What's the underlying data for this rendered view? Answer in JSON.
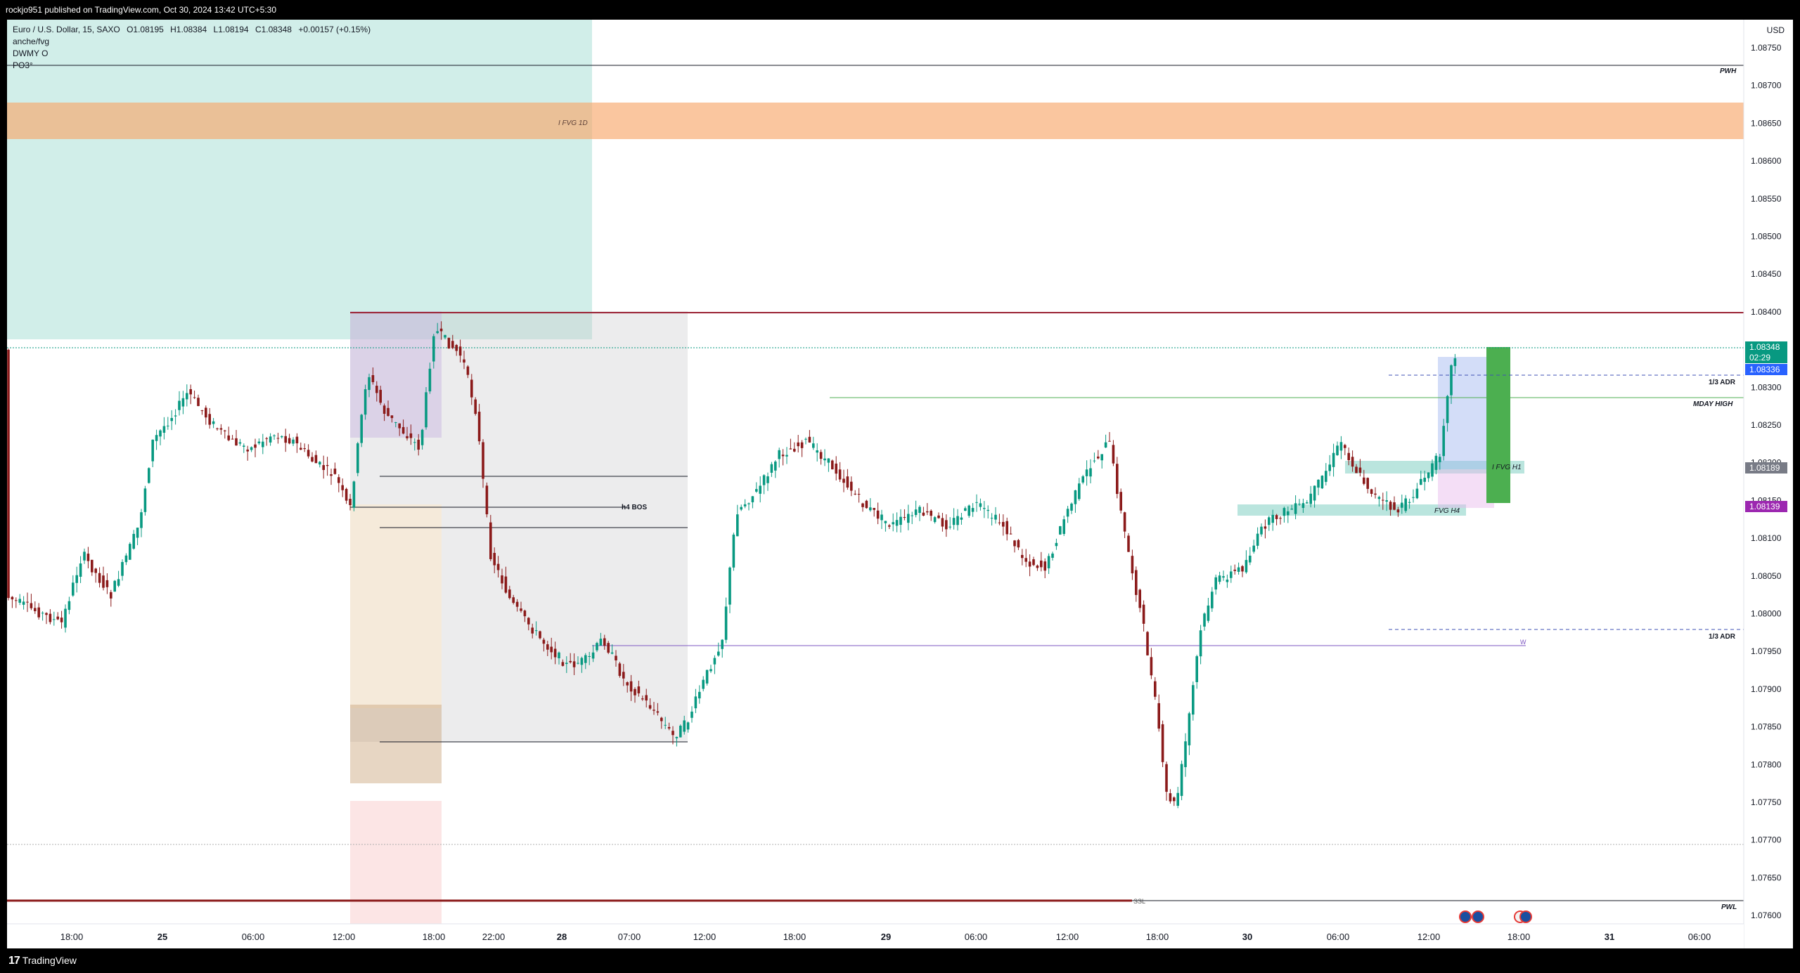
{
  "header": {
    "publisher_line": "rockjo951 published on TradingView.com, Oct 30, 2024 13:42 UTC+5:30"
  },
  "legend": {
    "symbol": "Euro / U.S. Dollar, 15, SAXO",
    "open": "O1.08195",
    "high": "H1.08384",
    "low": "L1.08194",
    "close": "C1.08348",
    "change": "+0.00157 (+0.15%)",
    "indicators": [
      "anche/fvg",
      "DWMY O",
      "PO3°"
    ]
  },
  "price_axis": {
    "currency": "USD",
    "ticks": [
      "1.08750",
      "1.08700",
      "1.08650",
      "1.08600",
      "1.08550",
      "1.08500",
      "1.08450",
      "1.08400",
      "1.08350",
      "1.08300",
      "1.08250",
      "1.08200",
      "1.08150",
      "1.08100",
      "1.08050",
      "1.08000",
      "1.07950",
      "1.07900",
      "1.07850",
      "1.07800",
      "1.07750",
      "1.07700",
      "1.07650",
      "1.07600"
    ],
    "badges": [
      {
        "text": "1.08348",
        "color": "#089981"
      },
      {
        "text": "02:29",
        "color": "#089981"
      },
      {
        "text": "1.08336",
        "color": "#2962ff"
      },
      {
        "text": "1.08189",
        "color": "#787b86"
      },
      {
        "text": "1.08139",
        "color": "#9c27b0"
      }
    ]
  },
  "time_axis": {
    "ticks": [
      "18:00",
      "25",
      "06:00",
      "12:00",
      "18:00",
      "22:00",
      "28",
      "07:00",
      "12:00",
      "18:00",
      "29",
      "06:00",
      "12:00",
      "18:00",
      "30",
      "06:00",
      "12:00",
      "18:00",
      "31",
      "06:00"
    ]
  },
  "labels": {
    "pwh": "PWH",
    "pwl": "PWL",
    "ifvg_1d": "I FVG 1D",
    "h4_bos": "h4 BOS",
    "adr_top": "1/3 ADR",
    "adr_bottom": "1/3 ADR",
    "mday_high": "MDAY HIGH",
    "ifvg_h1": "I FVG H1",
    "fvg_h4": "FVG  H4",
    "ssl": "SSL",
    "w": "W"
  },
  "footer": {
    "brand": "TradingView"
  },
  "colors": {
    "bull": "#089981",
    "bear": "#8b1a1a",
    "orange_zone": "#f7a86b",
    "teal_zone": "#b2e2da"
  },
  "chart_data": {
    "type": "candlestick",
    "symbol": "EURUSD",
    "interval": "15",
    "ylim": [
      1.0759,
      1.0878
    ],
    "last_price": 1.08348,
    "levels": [
      {
        "name": "PWH",
        "price": 1.08722
      },
      {
        "name": "PWL",
        "price": 1.07615
      },
      {
        "name": "MDAY HIGH",
        "price": 1.0828
      },
      {
        "name": "1/3 ADR",
        "price": 1.0831
      },
      {
        "name": "1/3 ADR",
        "price": 1.07972
      },
      {
        "name": "W",
        "price": 1.07955
      }
    ]
  }
}
